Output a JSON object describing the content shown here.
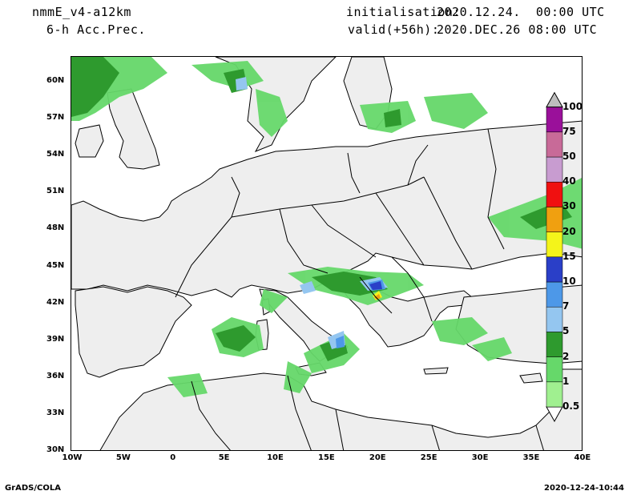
{
  "header": {
    "model": "nmmE_v4-a12km",
    "field": "6-h Acc.Prec.",
    "init_label": "initialisation:",
    "init_value": "2020.12.24.  00:00 UTC",
    "valid_label": "valid(+56h):",
    "valid_value": "2020.DEC.26 08:00 UTC"
  },
  "lat_ticks": [
    "60N",
    "57N",
    "54N",
    "51N",
    "48N",
    "45N",
    "42N",
    "39N",
    "36N",
    "33N",
    "30N"
  ],
  "lon_ticks": [
    "10W",
    "5W",
    "0",
    "5E",
    "10E",
    "15E",
    "20E",
    "25E",
    "30E",
    "35E",
    "40E"
  ],
  "colorbar": {
    "labels": [
      "0.5",
      "1",
      "2",
      "5",
      "7",
      "10",
      "15",
      "20",
      "30",
      "40",
      "50",
      "75",
      "100"
    ],
    "colors": [
      "#a0f090",
      "#66d86a",
      "#2e9a2e",
      "#94c6f0",
      "#4d98e8",
      "#2a3fc8",
      "#f4f41a",
      "#f0a010",
      "#f01010",
      "#c89cd0",
      "#c86a98",
      "#9a109a",
      "#bebebe"
    ]
  },
  "map": {
    "land_color": "#eeeeee",
    "sea_color": "#ffffff",
    "border_color": "#000000"
  },
  "footer": {
    "left": "GrADS/COLA",
    "right": "2020-12-24-10:44"
  }
}
